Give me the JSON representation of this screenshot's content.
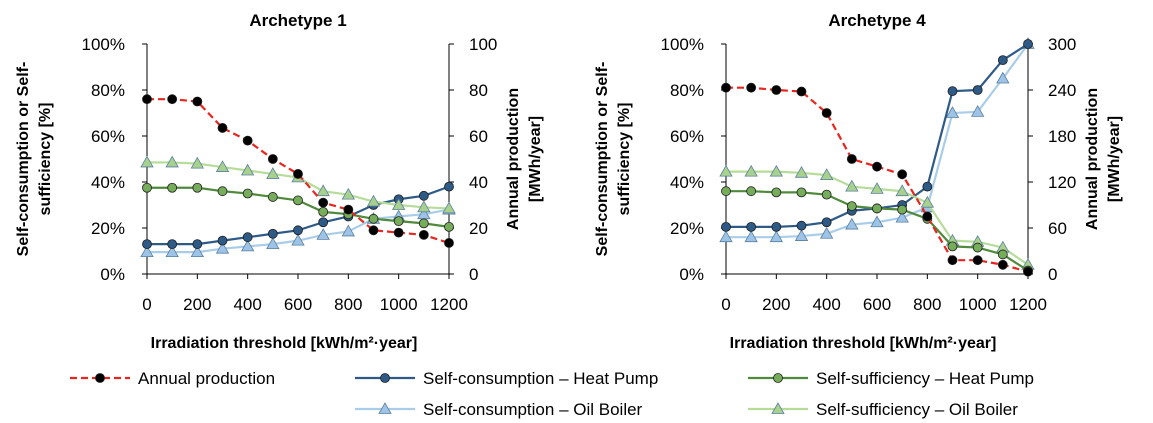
{
  "chart_data": [
    {
      "type": "line",
      "title": "Archetype 1",
      "xlabel": "Irradiation threshold [kWh/m²·year]",
      "ylabel_left": [
        "Self-consumption or Self-",
        "sufficiency [%]"
      ],
      "ylabel_right": [
        "Annual production",
        "[MWh/year]"
      ],
      "x": [
        0,
        100,
        200,
        300,
        400,
        500,
        600,
        700,
        800,
        900,
        1000,
        1100,
        1200
      ],
      "x_ticks": [
        "0",
        "200",
        "400",
        "600",
        "800",
        "1000",
        "1200"
      ],
      "x_tick_values": [
        0,
        200,
        400,
        600,
        800,
        1000,
        1200
      ],
      "xlim": [
        0,
        1200
      ],
      "ylim_left": [
        0,
        100
      ],
      "y_ticks_left": [
        "0%",
        "20%",
        "40%",
        "60%",
        "80%",
        "100%"
      ],
      "y_tick_values_left": [
        0,
        20,
        40,
        60,
        80,
        100
      ],
      "ylim_right": [
        0,
        100
      ],
      "y_ticks_right": [
        "0",
        "20",
        "40",
        "60",
        "80",
        "100"
      ],
      "y_tick_values_right": [
        0,
        20,
        40,
        60,
        80,
        100
      ],
      "grid": false,
      "series": [
        {
          "name": "Annual production",
          "axis": "right",
          "color": "#e8251f",
          "dashed": true,
          "marker": "circle",
          "marker_color": "#000000",
          "values": [
            76,
            76,
            75,
            63.5,
            58,
            50,
            43.5,
            31,
            28,
            19,
            18,
            17,
            13.5
          ]
        },
        {
          "name": "Self-consumption – Heat Pump",
          "axis": "left",
          "color": "#2e5a87",
          "marker": "circle",
          "marker_color": "#2e5a87",
          "values": [
            13,
            13,
            13,
            14.5,
            16,
            17.5,
            19,
            22.5,
            25,
            30,
            32.5,
            34,
            38
          ]
        },
        {
          "name": "Self-sufficiency – Heat Pump",
          "axis": "left",
          "color": "#4f8a3c",
          "marker": "circle",
          "marker_color": "#76ad5b",
          "values": [
            37.5,
            37.5,
            37.5,
            36,
            35,
            33.5,
            32,
            27,
            26,
            24,
            23,
            22,
            20.5
          ]
        },
        {
          "name": "Self-consumption – Oil Boiler",
          "axis": "left",
          "color": "#a9cde9",
          "marker": "triangle",
          "marker_color": "#9dc3e6",
          "values": [
            9.5,
            9.5,
            9.5,
            11,
            12,
            13,
            14.5,
            17,
            18.5,
            24,
            25,
            26,
            28
          ]
        },
        {
          "name": "Self-sufficiency – Oil Boiler",
          "axis": "left",
          "color": "#b6dc9a",
          "marker": "triangle",
          "marker_color": "#a9d18e",
          "values": [
            48.5,
            48.5,
            48,
            46.5,
            45,
            43.5,
            42,
            36,
            34.5,
            31.5,
            30,
            29,
            28.5
          ]
        }
      ]
    },
    {
      "type": "line",
      "title": "Archetype 4",
      "xlabel": "Irradiation threshold [kWh/m²·year]",
      "ylabel_left": [
        "Self-consumption or Self-",
        "sufficiency [%]"
      ],
      "ylabel_right": [
        "Annual production",
        "[MWh/year]"
      ],
      "x": [
        0,
        100,
        200,
        300,
        400,
        500,
        600,
        700,
        800,
        900,
        1000,
        1100,
        1200
      ],
      "x_ticks": [
        "0",
        "200",
        "400",
        "600",
        "800",
        "1000",
        "1200"
      ],
      "x_tick_values": [
        0,
        200,
        400,
        600,
        800,
        1000,
        1200
      ],
      "xlim": [
        0,
        1200
      ],
      "ylim_left": [
        0,
        100
      ],
      "y_ticks_left": [
        "0%",
        "20%",
        "40%",
        "60%",
        "80%",
        "100%"
      ],
      "y_tick_values_left": [
        0,
        20,
        40,
        60,
        80,
        100
      ],
      "ylim_right": [
        0,
        300
      ],
      "y_ticks_right": [
        "0",
        "60",
        "120",
        "180",
        "240",
        "300"
      ],
      "y_tick_values_right": [
        0,
        60,
        120,
        180,
        240,
        300
      ],
      "grid": false,
      "series": [
        {
          "name": "Annual production",
          "axis": "right",
          "color": "#e8251f",
          "dashed": true,
          "marker": "circle",
          "marker_color": "#000000",
          "values": [
            243,
            243,
            240,
            238,
            210,
            150,
            140,
            130,
            75,
            18,
            18,
            12,
            3
          ]
        },
        {
          "name": "Self-consumption – Heat Pump",
          "axis": "left",
          "color": "#2e5a87",
          "marker": "circle",
          "marker_color": "#2e5a87",
          "values": [
            20.5,
            20.5,
            20.5,
            21,
            22.5,
            27.5,
            28.5,
            30,
            38,
            79.5,
            80,
            93,
            100
          ]
        },
        {
          "name": "Self-sufficiency – Heat Pump",
          "axis": "left",
          "color": "#4f8a3c",
          "marker": "circle",
          "marker_color": "#76ad5b",
          "values": [
            36,
            36,
            35.5,
            35.5,
            34.5,
            29.5,
            28.5,
            28,
            24,
            12,
            11.5,
            8.5,
            1.5
          ]
        },
        {
          "name": "Self-consumption – Oil Boiler",
          "axis": "left",
          "color": "#a9cde9",
          "marker": "triangle",
          "marker_color": "#9dc3e6",
          "values": [
            16,
            16,
            16,
            16.5,
            17.5,
            21.5,
            22.5,
            24.5,
            29,
            70,
            70.5,
            85,
            100
          ]
        },
        {
          "name": "Self-sufficiency – Oil Boiler",
          "axis": "left",
          "color": "#b6dc9a",
          "marker": "triangle",
          "marker_color": "#a9d18e",
          "values": [
            44.5,
            44.5,
            44.5,
            44,
            43,
            38,
            37,
            36,
            31,
            14.5,
            14,
            11.5,
            4
          ]
        }
      ]
    }
  ],
  "legend": {
    "placement": "bottom",
    "items": [
      {
        "label": "Annual production",
        "color": "#e8251f",
        "dashed": true,
        "marker": "circle",
        "marker_color": "#000000"
      },
      {
        "label": "Self-consumption – Heat Pump",
        "color": "#2e5a87",
        "marker": "circle",
        "marker_color": "#2e5a87"
      },
      {
        "label": "Self-sufficiency – Heat Pump",
        "color": "#4f8a3c",
        "marker": "circle",
        "marker_color": "#76ad5b"
      },
      {
        "label": "Self-consumption – Oil Boiler",
        "color": "#a9cde9",
        "marker": "triangle",
        "marker_color": "#9dc3e6"
      },
      {
        "label": "Self-sufficiency – Oil Boiler",
        "color": "#b6dc9a",
        "marker": "triangle",
        "marker_color": "#a9d18e"
      }
    ]
  }
}
